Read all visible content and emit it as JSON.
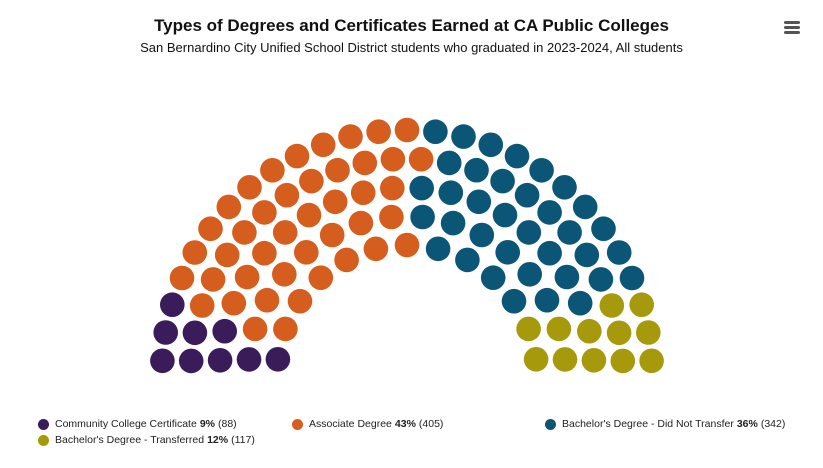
{
  "chart_data": {
    "type": "parliament",
    "title": "Types of Degrees and Certificates Earned at CA Public Colleges",
    "subtitle": "San Bernardino City Unified School District students who graduated in 2023-2024, All students",
    "dot_total": 100,
    "series": [
      {
        "name": "Community College Certificate",
        "percent_label": "9%",
        "count_label": "(88)",
        "count": 88,
        "dots": 9,
        "color": "#3b1c5a"
      },
      {
        "name": "Associate Degree",
        "percent_label": "43%",
        "count_label": "(405)",
        "count": 405,
        "dots": 43,
        "color": "#d55e1f"
      },
      {
        "name": "Bachelor's Degree - Did Not Transfer",
        "percent_label": "36%",
        "count_label": "(342)",
        "count": 342,
        "dots": 36,
        "color": "#0b5677"
      },
      {
        "name": "Bachelor's Degree - Transferred",
        "percent_label": "12%",
        "count_label": "(117)",
        "count": 117,
        "dots": 12,
        "color": "#a69a0c"
      }
    ],
    "legend_position": "bottom"
  },
  "menu": {
    "icon": "hamburger-menu-icon"
  }
}
